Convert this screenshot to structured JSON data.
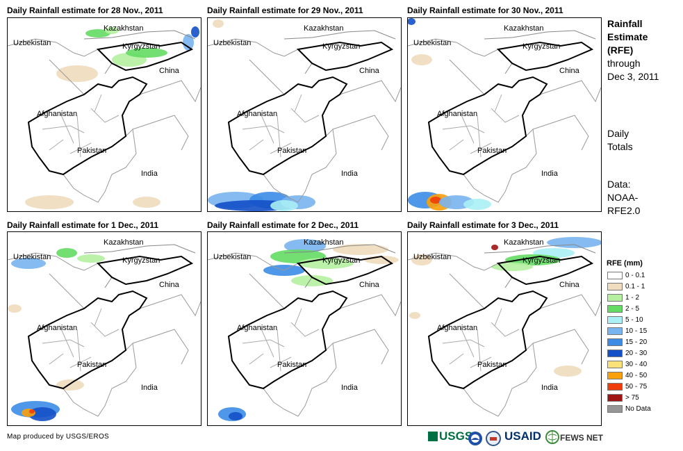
{
  "panels": [
    {
      "title": "Daily Rainfall estimate for 28 Nov., 2011"
    },
    {
      "title": "Daily Rainfall estimate for 29 Nov., 2011"
    },
    {
      "title": "Daily Rainfall estimate for 30 Nov., 2011"
    },
    {
      "title": "Daily Rainfall estimate for 1 Dec., 2011"
    },
    {
      "title": "Daily Rainfall estimate for 2 Dec., 2011"
    },
    {
      "title": "Daily Rainfall estimate for 3 Dec., 2011"
    }
  ],
  "places": {
    "kazakhstan": "Kazakhstan",
    "uzbekistan": "Uzbekistan",
    "kyrgyzstan": "Kyrgyzstan",
    "china": "China",
    "afghanistan": "Afghanistan",
    "pakistan": "Pakistan",
    "india": "India"
  },
  "sidebar": {
    "title_line1": "Rainfall",
    "title_line2": "Estimate",
    "title_line3": "(RFE)",
    "through": "through",
    "date": "Dec 3, 2011",
    "totals_line1": "Daily",
    "totals_line2": "Totals",
    "data_line1": "Data:",
    "data_line2": "NOAA-",
    "data_line3": "RFE2.0"
  },
  "legend": {
    "title": "RFE (mm)",
    "items": [
      {
        "label": "0 - 0.1",
        "color": "#ffffff"
      },
      {
        "label": "0.1 - 1",
        "color": "#f0dcbe"
      },
      {
        "label": "1 - 2",
        "color": "#b4f0a0"
      },
      {
        "label": "2 - 5",
        "color": "#64dc64"
      },
      {
        "label": "5 - 10",
        "color": "#aaf0f5"
      },
      {
        "label": "10 - 15",
        "color": "#78b4f0"
      },
      {
        "label": "15 - 20",
        "color": "#3c8ce6"
      },
      {
        "label": "20 - 30",
        "color": "#1450c8"
      },
      {
        "label": "30 - 40",
        "color": "#fae178"
      },
      {
        "label": "40 - 50",
        "color": "#faa00a"
      },
      {
        "label": "50 - 75",
        "color": "#f03c0a"
      },
      {
        "label": "> 75",
        "color": "#a01414"
      },
      {
        "label": "No Data",
        "color": "#969696"
      }
    ]
  },
  "footer": {
    "credit": "Map produced by USGS/EROS"
  },
  "logos": {
    "usgs": "USGS",
    "usaid": "USAID",
    "fewsnet": "FEWS NET"
  }
}
